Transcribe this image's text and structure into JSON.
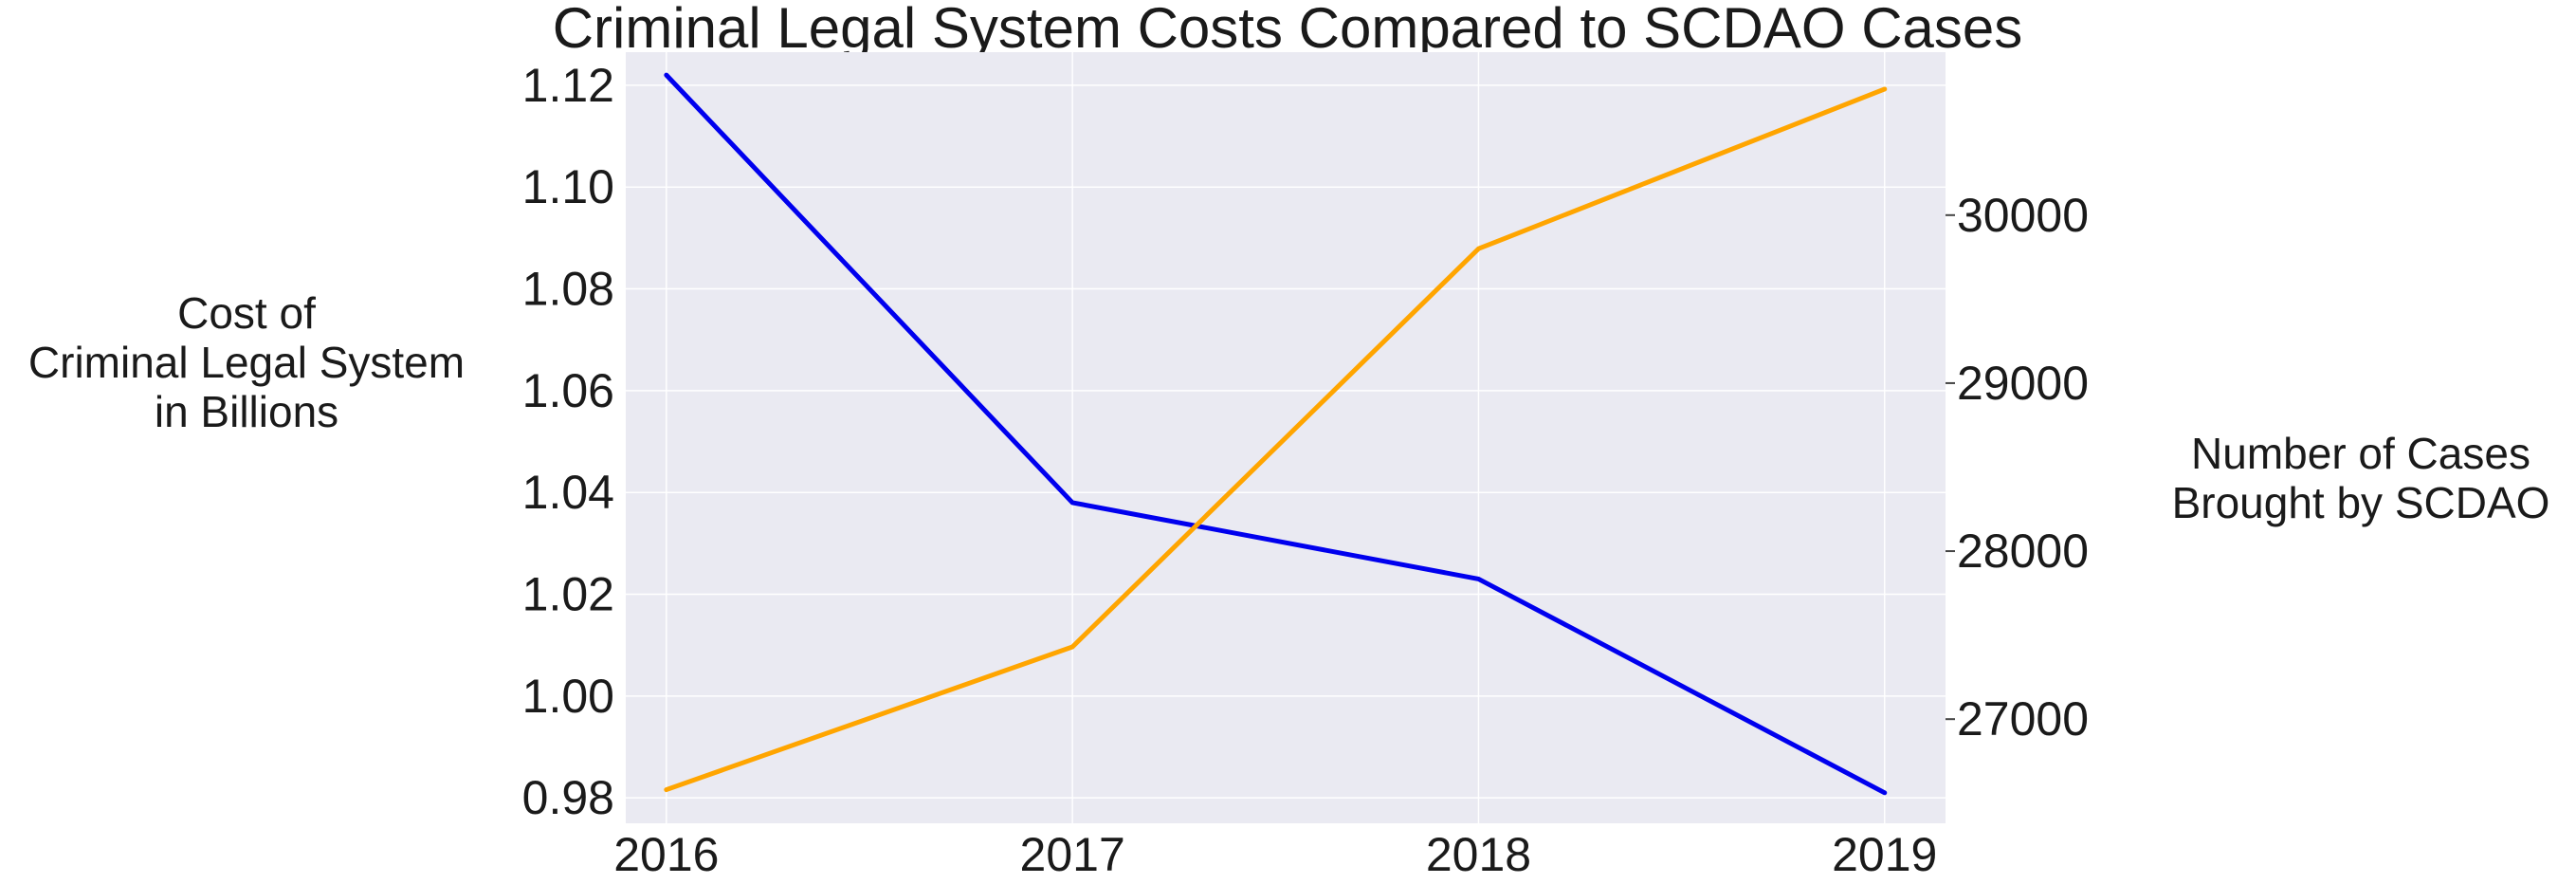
{
  "chart_data": {
    "type": "line",
    "title": "Criminal Legal System Costs Compared to SCDAO Cases",
    "x": [
      2016,
      2017,
      2018,
      2019
    ],
    "x_tick_labels": [
      "2016",
      "2017",
      "2018",
      "2019"
    ],
    "xlim": [
      2015.9,
      2019.15
    ],
    "y_left": {
      "label_lines": [
        "Cost of",
        "Criminal Legal System",
        "in Billions"
      ],
      "ylim": [
        0.975,
        1.1265
      ],
      "ticks": [
        0.98,
        1.0,
        1.02,
        1.04,
        1.06,
        1.08,
        1.1,
        1.12
      ],
      "tick_labels": [
        "0.98",
        "1.00",
        "1.02",
        "1.04",
        "1.06",
        "1.08",
        "1.10",
        "1.12"
      ]
    },
    "y_right": {
      "label_lines": [
        "Number of Cases",
        "Brought by SCDAO"
      ],
      "ylim": [
        26380,
        30970
      ],
      "ticks": [
        27000,
        28000,
        29000,
        30000
      ],
      "tick_labels": [
        "27000",
        "28000",
        "29000",
        "30000"
      ]
    },
    "series": [
      {
        "axis": "left",
        "color": "#0000ee",
        "values": [
          1.122,
          1.038,
          1.023,
          0.981
        ]
      },
      {
        "axis": "right",
        "color": "#ffa500",
        "values": [
          26580,
          27430,
          29800,
          30750
        ]
      }
    ],
    "grid": true,
    "colors": {
      "plot_background": "#eaeaf2",
      "grid": "#ffffff"
    }
  }
}
